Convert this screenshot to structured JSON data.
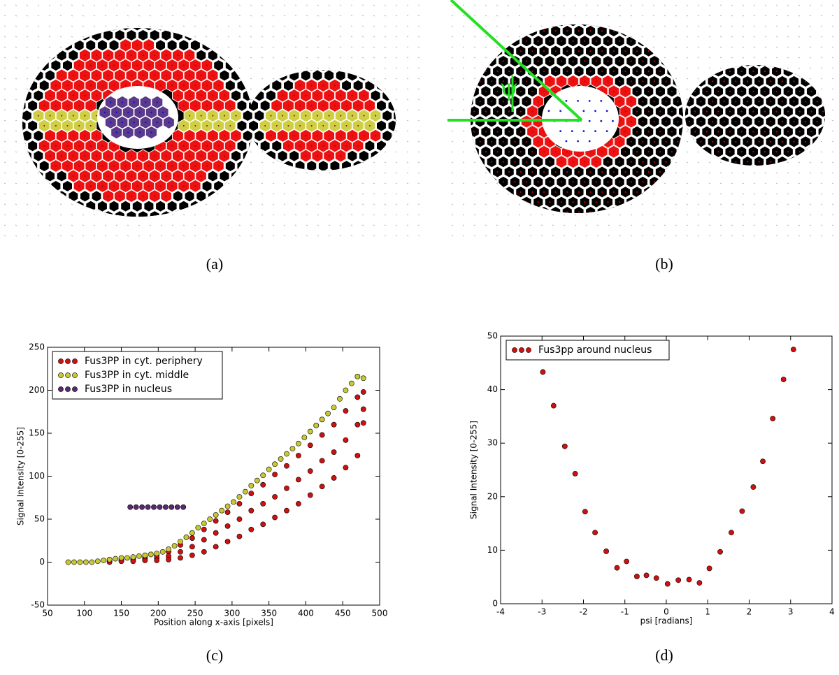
{
  "figure": {
    "panels": [
      {
        "caption": "(a)"
      },
      {
        "caption": "(b)",
        "annotation": "ψ"
      }
    ]
  },
  "chart_data": [
    {
      "type": "scatter",
      "caption": "(c)",
      "xlabel": "Position along x-axis [pixels]",
      "ylabel": "Signal Intensity [0-255]",
      "xlim": [
        50,
        500
      ],
      "xticks": [
        50,
        100,
        150,
        200,
        250,
        300,
        350,
        400,
        450,
        500
      ],
      "ylim": [
        -50,
        250
      ],
      "yticks": [
        -50,
        0,
        50,
        100,
        150,
        200,
        250
      ],
      "legend": "upper left",
      "series": [
        {
          "name": "Fus3PP in cyt. periphery",
          "color": "#cc1111",
          "x": [
            134,
            150,
            166,
            182,
            198,
            214,
            230,
            246,
            262,
            278,
            294,
            310,
            326,
            342,
            358,
            374,
            390,
            406,
            422,
            438,
            454,
            470,
            478,
            134,
            150,
            166,
            182,
            198,
            214,
            230,
            246,
            262,
            278,
            294,
            310,
            326,
            342,
            358,
            374,
            390,
            406,
            422,
            438,
            454,
            470,
            478,
            134,
            150,
            166,
            182,
            198,
            214,
            230,
            246,
            262,
            278,
            294,
            310,
            326,
            342,
            358,
            374,
            390,
            406,
            422,
            438,
            454,
            470,
            478
          ],
          "values": [
            2,
            4,
            5,
            6,
            8,
            12,
            20,
            28,
            38,
            48,
            58,
            68,
            80,
            90,
            102,
            112,
            124,
            136,
            148,
            160,
            176,
            192,
            198,
            1,
            2,
            3,
            4,
            5,
            7,
            12,
            18,
            26,
            34,
            42,
            50,
            60,
            68,
            76,
            86,
            96,
            106,
            118,
            128,
            142,
            160,
            178,
            0,
            1,
            1,
            2,
            2,
            3,
            5,
            8,
            12,
            18,
            24,
            30,
            38,
            44,
            52,
            60,
            68,
            78,
            88,
            98,
            110,
            124,
            162
          ]
        },
        {
          "name": "Fus3PP in cyt. middle",
          "color": "#c8c832",
          "x": [
            78,
            86,
            94,
            102,
            110,
            118,
            126,
            134,
            142,
            150,
            158,
            166,
            174,
            182,
            190,
            198,
            206,
            214,
            222,
            230,
            238,
            246,
            254,
            262,
            270,
            278,
            286,
            294,
            302,
            310,
            318,
            326,
            334,
            342,
            350,
            358,
            366,
            374,
            382,
            390,
            398,
            406,
            414,
            422,
            430,
            438,
            446,
            454,
            462,
            470,
            478
          ],
          "values": [
            0,
            0,
            0,
            0,
            0,
            1,
            2,
            3,
            4,
            5,
            5,
            6,
            7,
            8,
            9,
            10,
            12,
            15,
            19,
            24,
            29,
            34,
            40,
            45,
            50,
            55,
            60,
            65,
            70,
            76,
            82,
            89,
            95,
            101,
            108,
            114,
            120,
            126,
            132,
            138,
            145,
            152,
            159,
            166,
            173,
            180,
            190,
            200,
            208,
            216,
            214
          ]
        },
        {
          "name": "Fus3PP in nucleus",
          "color": "#5a2a6e",
          "x": [
            162,
            170,
            178,
            186,
            194,
            202,
            210,
            218,
            226,
            234
          ],
          "values": [
            64,
            64,
            64,
            64,
            64,
            64,
            64,
            64,
            64,
            64
          ]
        }
      ]
    },
    {
      "type": "scatter",
      "caption": "(d)",
      "xlabel": "psi [radians]",
      "ylabel": "Signal Intensity [0-255]",
      "xlim": [
        -4,
        4
      ],
      "xticks": [
        -4,
        -3,
        -2,
        -1,
        0,
        1,
        2,
        3,
        4
      ],
      "ylim": [
        0,
        50
      ],
      "yticks": [
        0,
        10,
        20,
        30,
        40,
        50
      ],
      "legend": "upper left",
      "series": [
        {
          "name": "Fus3pp around nucleus",
          "color": "#cc1111",
          "x": [
            -2.98,
            -2.72,
            -2.45,
            -2.2,
            -1.96,
            -1.72,
            -1.45,
            -1.19,
            -0.96,
            -0.71,
            -0.48,
            -0.24,
            0.03,
            0.29,
            0.55,
            0.8,
            1.04,
            1.3,
            1.57,
            1.83,
            2.1,
            2.33,
            2.57,
            2.83,
            3.07
          ],
          "values": [
            43.3,
            37,
            29.4,
            24.3,
            17.2,
            13.3,
            9.8,
            6.7,
            7.9,
            5.1,
            5.3,
            4.8,
            3.7,
            4.4,
            4.5,
            3.9,
            6.6,
            9.7,
            13.3,
            17.3,
            21.8,
            26.6,
            34.6,
            41.9,
            47.5
          ]
        }
      ]
    }
  ]
}
